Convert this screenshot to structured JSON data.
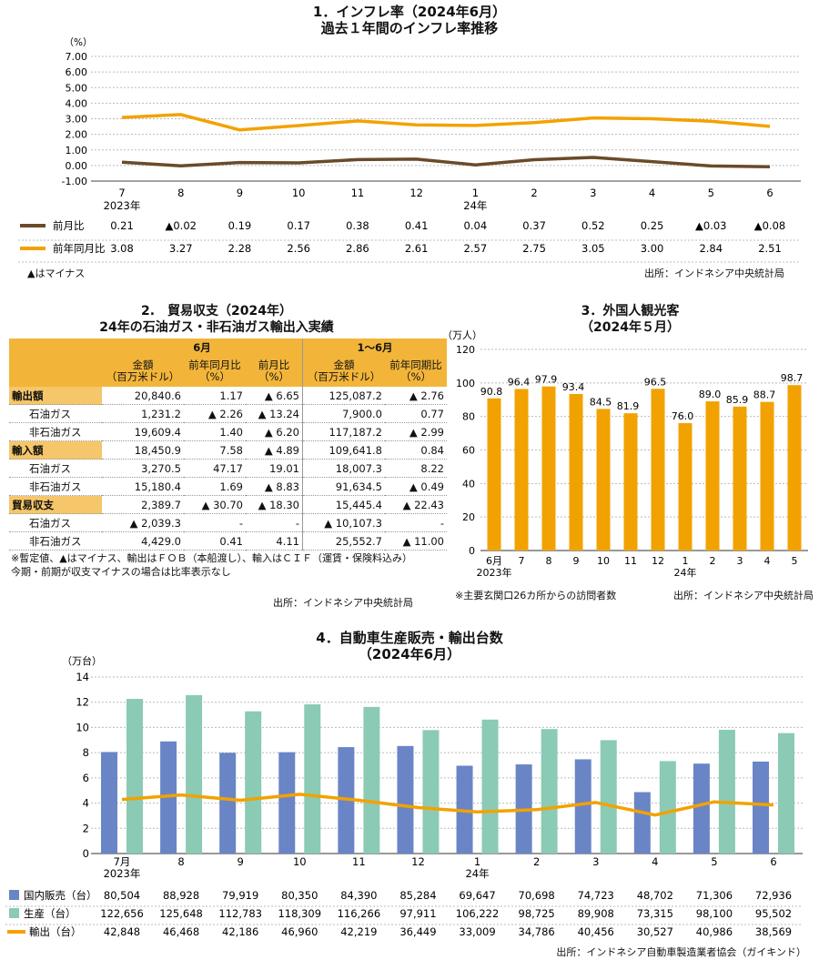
{
  "colors": {
    "brown": "#6b4a2a",
    "orange": "#f2a200",
    "blue": "#6a85c6",
    "teal": "#8bcab5",
    "header_orange": "#f2b53a"
  },
  "section1": {
    "title1": "1．インフレ率（2024年6月）",
    "title2": "過去１年間のインフレ率推移",
    "unit": "（%）",
    "note": "▲はマイナス",
    "source": "出所：インドネシア中央統計局",
    "row1_display": [
      "0.21",
      "▲0.02",
      "0.19",
      "0.17",
      "0.38",
      "0.41",
      "0.04",
      "0.37",
      "0.52",
      "0.25",
      "▲0.03",
      "▲0.08"
    ],
    "row2_display": [
      "3.08",
      "3.27",
      "2.28",
      "2.56",
      "2.86",
      "2.61",
      "2.57",
      "2.75",
      "3.05",
      "3.00",
      "2.84",
      "2.51"
    ]
  },
  "chart_data": [
    {
      "type": "line",
      "categories": [
        "7",
        "8",
        "9",
        "10",
        "11",
        "12",
        "1",
        "2",
        "3",
        "4",
        "5",
        "6"
      ],
      "category_sublabels": {
        "0": "2023年",
        "6": "24年"
      },
      "ylim": [
        -1.0,
        7.0
      ],
      "yticks": [
        "-1.00",
        "0.00",
        "1.00",
        "2.00",
        "3.00",
        "4.00",
        "5.00",
        "6.00",
        "7.00"
      ],
      "series": [
        {
          "name": "前月比",
          "values": [
            0.21,
            -0.02,
            0.19,
            0.17,
            0.38,
            0.41,
            0.04,
            0.37,
            0.52,
            0.25,
            -0.03,
            -0.08
          ]
        },
        {
          "name": "前年同月比",
          "values": [
            3.08,
            3.27,
            2.28,
            2.56,
            2.86,
            2.61,
            2.57,
            2.75,
            3.05,
            3.0,
            2.84,
            2.51
          ]
        }
      ]
    },
    {
      "type": "table",
      "title": "2.　貿易収支（2024年）",
      "subtitle": "24年の石油ガス・非石油ガス輸出入実績",
      "group_headers": [
        "6月",
        "1～6月"
      ],
      "columns": [
        "金額\n（百万米ドル）",
        "前年同月比\n（%）",
        "前月比\n（%）",
        "金額\n（百万米ドル）",
        "前年同期比\n（%）"
      ],
      "rows": [
        {
          "label": "輸出額",
          "cat": true,
          "indent": false,
          "values": [
            "20,840.6",
            "1.17",
            "▲ 6.65",
            "125,087.2",
            "▲ 2.76"
          ]
        },
        {
          "label": "石油ガス",
          "cat": false,
          "indent": true,
          "values": [
            "1,231.2",
            "▲ 2.26",
            "▲ 13.24",
            "7,900.0",
            "0.77"
          ]
        },
        {
          "label": "非石油ガス",
          "cat": false,
          "indent": true,
          "values": [
            "19,609.4",
            "1.40",
            "▲ 6.20",
            "117,187.2",
            "▲ 2.99"
          ]
        },
        {
          "label": "輸入額",
          "cat": true,
          "indent": false,
          "values": [
            "18,450.9",
            "7.58",
            "▲ 4.89",
            "109,641.8",
            "0.84"
          ]
        },
        {
          "label": "石油ガス",
          "cat": false,
          "indent": true,
          "values": [
            "3,270.5",
            "47.17",
            "19.01",
            "18,007.3",
            "8.22"
          ]
        },
        {
          "label": "非石油ガス",
          "cat": false,
          "indent": true,
          "values": [
            "15,180.4",
            "1.69",
            "▲ 8.83",
            "91,634.5",
            "▲ 0.49"
          ]
        },
        {
          "label": "貿易収支",
          "cat": true,
          "indent": false,
          "values": [
            "2,389.7",
            "▲ 30.70",
            "▲ 18.30",
            "15,445.4",
            "▲ 22.43"
          ]
        },
        {
          "label": "石油ガス",
          "cat": false,
          "indent": true,
          "values": [
            "▲ 2,039.3",
            "-",
            "-",
            "▲ 10,107.3",
            "-"
          ]
        },
        {
          "label": "非石油ガス",
          "cat": false,
          "indent": true,
          "values": [
            "4,429.0",
            "0.41",
            "4.11",
            "25,552.7",
            "▲ 11.00"
          ]
        }
      ],
      "notes": [
        "※暫定値、▲はマイナス、輸出はＦＯＢ（本船渡し）、輸入はＣＩＦ（運賃・保険料込み）",
        "今期・前期が収支マイナスの場合は比率表示なし"
      ],
      "source": "出所：インドネシア中央統計局"
    },
    {
      "type": "bar",
      "title": "3．外国人観光客",
      "subtitle": "（2024年５月）",
      "ylabel": "（万人）",
      "categories": [
        "6月",
        "7",
        "8",
        "9",
        "10",
        "11",
        "12",
        "1",
        "2",
        "3",
        "4",
        "5"
      ],
      "category_sublabels": {
        "0": "2023年",
        "7": "24年"
      },
      "values": [
        90.8,
        96.4,
        97.9,
        93.4,
        84.5,
        81.9,
        96.5,
        76.0,
        89.0,
        85.9,
        88.7,
        98.7
      ],
      "value_labels": [
        "90.8",
        "96.4",
        "97.9",
        "93.4",
        "84.5",
        "81.9",
        "96.5",
        "76.0",
        "89.0",
        "85.9",
        "88.7",
        "98.7"
      ],
      "ylim": [
        0,
        120
      ],
      "yticks": [
        "0",
        "20",
        "40",
        "60",
        "80",
        "100",
        "120"
      ],
      "note": "※主要玄関口26カ所からの訪問者数",
      "source": "出所：インドネシア中央統計局"
    },
    {
      "type": "bar",
      "title": "4．自動車生産販売・輸出台数",
      "subtitle": "（2024年6月）",
      "ylabel": "（万台）",
      "categories": [
        "7月",
        "8",
        "9",
        "10",
        "11",
        "12",
        "1",
        "2",
        "3",
        "4",
        "5",
        "6"
      ],
      "category_sublabels": {
        "0": "2023年",
        "6": "24年"
      },
      "ylim": [
        0,
        14
      ],
      "yticks": [
        "0",
        "2",
        "4",
        "6",
        "8",
        "10",
        "12",
        "14"
      ],
      "series": [
        {
          "name": "国内販売（台）",
          "kind": "bar",
          "values": [
            80504,
            88928,
            79919,
            80350,
            84390,
            85284,
            69647,
            70698,
            74723,
            48702,
            71306,
            72936
          ],
          "display": [
            "80,504",
            "88,928",
            "79,919",
            "80,350",
            "84,390",
            "85,284",
            "69,647",
            "70,698",
            "74,723",
            "48,702",
            "71,306",
            "72,936"
          ]
        },
        {
          "name": "生産（台）",
          "kind": "bar",
          "values": [
            122656,
            125648,
            112783,
            118309,
            116266,
            97911,
            106222,
            98725,
            89908,
            73315,
            98100,
            95502
          ],
          "display": [
            "122,656",
            "125,648",
            "112,783",
            "118,309",
            "116,266",
            "97,911",
            "106,222",
            "98,725",
            "89,908",
            "73,315",
            "98,100",
            "95,502"
          ]
        },
        {
          "name": "輸出（台）",
          "kind": "line",
          "values": [
            42848,
            46468,
            42186,
            46960,
            42219,
            36449,
            33009,
            34786,
            40456,
            30527,
            40986,
            38569
          ],
          "display": [
            "42,848",
            "46,468",
            "42,186",
            "46,960",
            "42,219",
            "36,449",
            "33,009",
            "34,786",
            "40,456",
            "30,527",
            "40,986",
            "38,569"
          ]
        }
      ],
      "source": "出所：インドネシア自動車製造業者協会（ガイキンド）"
    }
  ]
}
